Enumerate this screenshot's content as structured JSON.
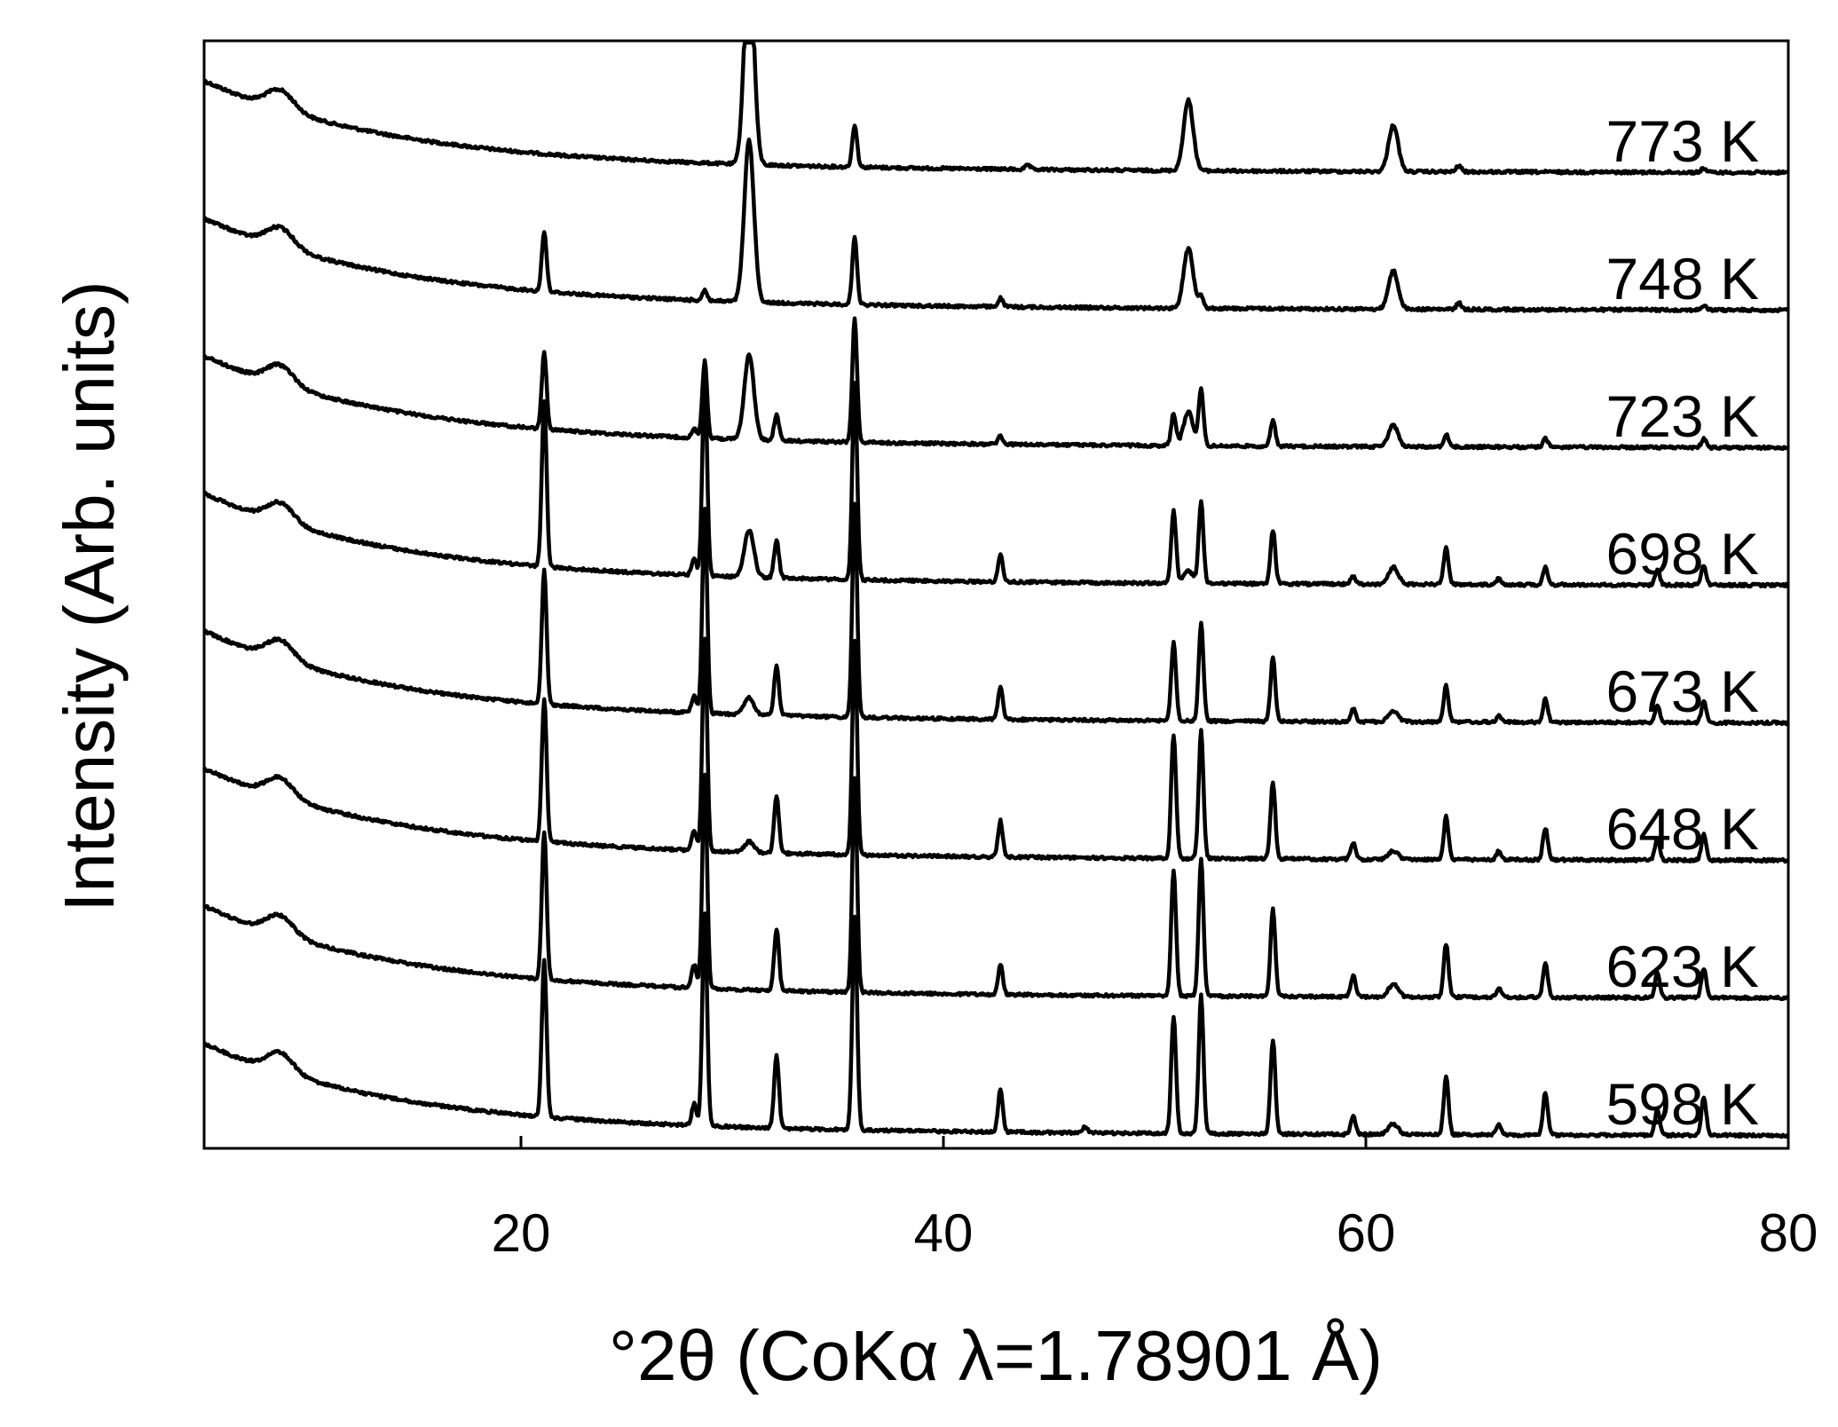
{
  "chart_data": {
    "type": "line",
    "xlabel": "°2θ (CoKα λ=1.78901 Å)",
    "ylabel": "Intensity (Arb. units)",
    "xlim": [
      5,
      80
    ],
    "xticks": [
      20,
      40,
      60,
      80
    ],
    "yticks": [],
    "grid": false,
    "legend": "none",
    "line_color": "#000000",
    "series": [
      {
        "name": "773 K",
        "peaks": [
          [
            30.8,
            1.0
          ],
          [
            35.8,
            0.2
          ],
          [
            51.6,
            0.33
          ],
          [
            61.3,
            0.22
          ],
          [
            64.4,
            0.03
          ],
          [
            44.0,
            0.02
          ],
          [
            76.0,
            0.02
          ]
        ]
      },
      {
        "name": "748 K",
        "peaks": [
          [
            21.1,
            0.28
          ],
          [
            28.7,
            0.05
          ],
          [
            30.8,
            0.76
          ],
          [
            35.8,
            0.32
          ],
          [
            42.7,
            0.04
          ],
          [
            51.6,
            0.28
          ],
          [
            52.2,
            0.06
          ],
          [
            61.3,
            0.18
          ],
          [
            64.4,
            0.03
          ],
          [
            76.0,
            0.02
          ]
        ]
      },
      {
        "name": "723 K",
        "peaks": [
          [
            21.1,
            0.36
          ],
          [
            28.2,
            0.04
          ],
          [
            28.7,
            0.36
          ],
          [
            30.8,
            0.4
          ],
          [
            32.1,
            0.12
          ],
          [
            35.8,
            0.58
          ],
          [
            42.7,
            0.04
          ],
          [
            50.9,
            0.15
          ],
          [
            51.6,
            0.16
          ],
          [
            52.2,
            0.26
          ],
          [
            55.6,
            0.12
          ],
          [
            61.3,
            0.1
          ],
          [
            63.8,
            0.06
          ],
          [
            68.5,
            0.04
          ],
          [
            76.0,
            0.04
          ]
        ]
      },
      {
        "name": "698 K",
        "peaks": [
          [
            21.1,
            0.77
          ],
          [
            28.2,
            0.08
          ],
          [
            28.7,
            0.93
          ],
          [
            30.8,
            0.22
          ],
          [
            32.1,
            0.18
          ],
          [
            35.8,
            0.93
          ],
          [
            42.7,
            0.13
          ],
          [
            50.9,
            0.34
          ],
          [
            51.6,
            0.06
          ],
          [
            52.2,
            0.38
          ],
          [
            55.6,
            0.25
          ],
          [
            59.4,
            0.04
          ],
          [
            61.3,
            0.08
          ],
          [
            63.8,
            0.17
          ],
          [
            66.3,
            0.03
          ],
          [
            68.5,
            0.08
          ],
          [
            73.8,
            0.07
          ],
          [
            76.0,
            0.09
          ]
        ]
      },
      {
        "name": "673 K",
        "peaks": [
          [
            21.1,
            0.63
          ],
          [
            28.2,
            0.08
          ],
          [
            28.7,
            0.96
          ],
          [
            30.8,
            0.08
          ],
          [
            32.1,
            0.23
          ],
          [
            35.8,
            1.0
          ],
          [
            42.7,
            0.15
          ],
          [
            50.9,
            0.37
          ],
          [
            52.2,
            0.46
          ],
          [
            55.6,
            0.3
          ],
          [
            59.4,
            0.06
          ],
          [
            61.3,
            0.05
          ],
          [
            63.8,
            0.17
          ],
          [
            66.3,
            0.03
          ],
          [
            68.5,
            0.11
          ],
          [
            73.8,
            0.08
          ],
          [
            76.0,
            0.1
          ]
        ]
      },
      {
        "name": "648 K",
        "peaks": [
          [
            21.1,
            0.67
          ],
          [
            28.2,
            0.09
          ],
          [
            28.7,
            1.0
          ],
          [
            30.8,
            0.05
          ],
          [
            32.1,
            0.27
          ],
          [
            35.8,
            1.0
          ],
          [
            42.7,
            0.17
          ],
          [
            50.9,
            0.58
          ],
          [
            52.2,
            0.6
          ],
          [
            55.6,
            0.36
          ],
          [
            59.4,
            0.08
          ],
          [
            61.3,
            0.04
          ],
          [
            63.8,
            0.2
          ],
          [
            66.3,
            0.04
          ],
          [
            68.5,
            0.15
          ],
          [
            73.8,
            0.1
          ],
          [
            76.0,
            0.12
          ]
        ]
      },
      {
        "name": "623 K",
        "peaks": [
          [
            21.1,
            0.69
          ],
          [
            28.2,
            0.11
          ],
          [
            28.7,
            1.0
          ],
          [
            32.1,
            0.29
          ],
          [
            35.8,
            1.0
          ],
          [
            42.7,
            0.14
          ],
          [
            50.9,
            0.59
          ],
          [
            52.2,
            0.65
          ],
          [
            55.6,
            0.41
          ],
          [
            59.4,
            0.1
          ],
          [
            61.3,
            0.06
          ],
          [
            63.8,
            0.25
          ],
          [
            66.3,
            0.04
          ],
          [
            68.5,
            0.16
          ],
          [
            73.8,
            0.12
          ],
          [
            76.0,
            0.14
          ]
        ]
      },
      {
        "name": "598 K",
        "peaks": [
          [
            21.1,
            0.73
          ],
          [
            28.2,
            0.1
          ],
          [
            28.7,
            1.0
          ],
          [
            32.1,
            0.34
          ],
          [
            35.8,
            1.0
          ],
          [
            42.7,
            0.2
          ],
          [
            46.7,
            0.03
          ],
          [
            50.9,
            0.55
          ],
          [
            52.2,
            0.65
          ],
          [
            55.6,
            0.44
          ],
          [
            59.4,
            0.09
          ],
          [
            61.3,
            0.05
          ],
          [
            63.8,
            0.27
          ],
          [
            66.3,
            0.05
          ],
          [
            68.5,
            0.2
          ],
          [
            73.8,
            0.12
          ],
          [
            76.0,
            0.18
          ]
        ]
      }
    ]
  }
}
